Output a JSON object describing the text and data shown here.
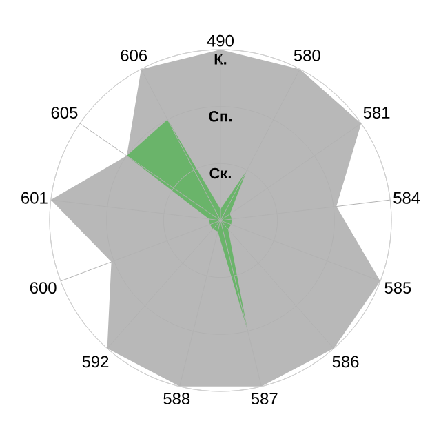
{
  "chart_data": {
    "type": "radar",
    "categories": [
      "490",
      "580",
      "581",
      "584",
      "585",
      "586",
      "587",
      "588",
      "592",
      "600",
      "601",
      "605",
      "606"
    ],
    "series": [
      {
        "color": "#b8b8b8",
        "values": [
          3,
          3,
          3,
          2.05,
          3,
          3,
          3,
          3,
          3,
          2.05,
          3,
          2,
          3
        ]
      },
      {
        "color": "#6ab46a",
        "values": [
          0.2,
          1,
          0.2,
          0.2,
          0.2,
          0.2,
          2,
          0.2,
          0.2,
          0.2,
          0.2,
          2,
          2
        ]
      }
    ],
    "ylim": [
      0,
      3
    ],
    "yticks": [
      {
        "value": 1,
        "label": "Ск."
      },
      {
        "value": 2,
        "label": "Сп."
      },
      {
        "value": 3,
        "label": "К."
      }
    ],
    "grid": true
  }
}
